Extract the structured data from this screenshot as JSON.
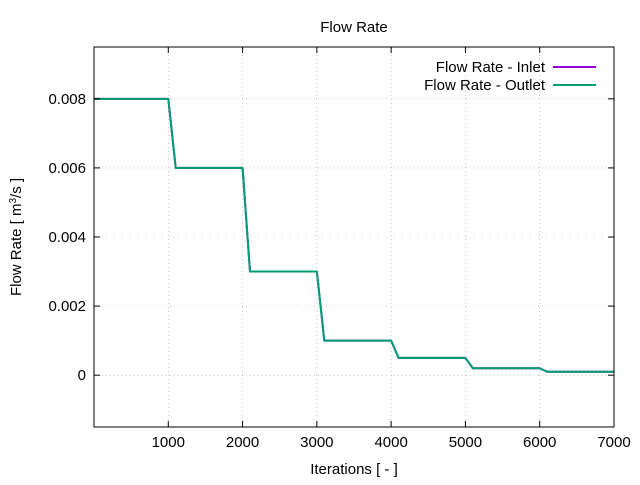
{
  "chart_data": {
    "type": "line",
    "title": "Flow Rate",
    "xlabel": "Iterations [ - ]",
    "ylabel": {
      "prefix": "Flow Rate [ m",
      "superscript": "3",
      "suffix": "/s ]"
    },
    "xlim": [
      0,
      7000
    ],
    "ylim": [
      -0.0015,
      0.0095
    ],
    "x_ticks": [
      1000,
      2000,
      3000,
      4000,
      5000,
      6000,
      7000
    ],
    "x_tick_labels": [
      "1000",
      "2000",
      "3000",
      "4000",
      "5000",
      "6000",
      "7000"
    ],
    "y_ticks": [
      0,
      0.002,
      0.004,
      0.006,
      0.008
    ],
    "y_tick_labels": [
      "0",
      "0.002",
      "0.004",
      "0.006",
      "0.008"
    ],
    "grid": true,
    "legend_position": "top-right",
    "series": [
      {
        "name": "Flow Rate - Inlet",
        "color": "#9400d3",
        "x": [
          0,
          1000,
          1100,
          2000,
          2100,
          3000,
          3100,
          4000,
          4100,
          5000,
          5100,
          6000,
          6100,
          7000
        ],
        "y": [
          0.008,
          0.008,
          0.006,
          0.006,
          0.003,
          0.003,
          0.001,
          0.001,
          0.0005,
          0.0005,
          0.0002,
          0.0002,
          0.0001,
          0.0001
        ]
      },
      {
        "name": "Flow Rate - Outlet",
        "color": "#009e73",
        "x": [
          0,
          1000,
          1100,
          2000,
          2100,
          3000,
          3100,
          4000,
          4100,
          5000,
          5100,
          6000,
          6100,
          7000
        ],
        "y": [
          0.008,
          0.008,
          0.006,
          0.006,
          0.003,
          0.003,
          0.001,
          0.001,
          0.0005,
          0.0005,
          0.0002,
          0.0002,
          0.0001,
          0.0001
        ]
      }
    ]
  }
}
